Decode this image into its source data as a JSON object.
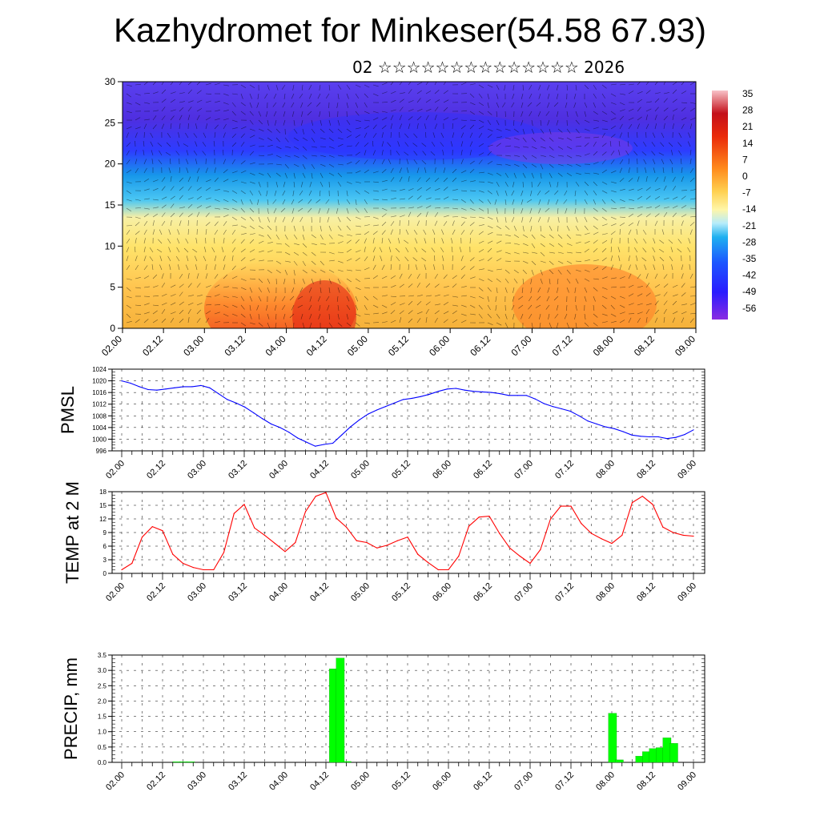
{
  "title": "Kazhydromet for Minkeser(54.58 67.93)",
  "subtitle": "02 ☆☆☆☆☆☆☆☆☆☆☆☆☆☆ 2026",
  "x_labels": [
    "02.00",
    "02.12",
    "03.00",
    "03.12",
    "04.00",
    "04.12",
    "05.00",
    "05.12",
    "06.00",
    "06.12",
    "07.00",
    "07.12",
    "08.00",
    "08.12",
    "09.00"
  ],
  "chart_data": [
    {
      "type": "heatmap",
      "ylim": [
        0,
        30
      ],
      "yticks": [
        0,
        5,
        10,
        15,
        20,
        25,
        30
      ],
      "colorbar": {
        "labels": [
          "35",
          "28",
          "21",
          "14",
          "7",
          "0",
          "-7",
          "-14",
          "-21",
          "-28",
          "-35",
          "-42",
          "-49",
          "-56"
        ],
        "range": [
          -63,
          38
        ]
      },
      "colors": {
        "cold": "#7b26d9",
        "blue": "#2a40ff",
        "cyan": "#27c3f2",
        "yellow": "#ffe16a",
        "orange": "#ffa53b",
        "red": "#e41e12"
      }
    },
    {
      "type": "line",
      "ylabel": "PMSL",
      "ylim": [
        996,
        1024
      ],
      "yticks": [
        "996",
        "1000",
        "1004",
        "1008",
        "1012",
        "1016",
        "1020",
        "1024"
      ],
      "color": "#0000ff",
      "values": [
        1020,
        1019.2,
        1018,
        1017,
        1016.8,
        1017.2,
        1017.6,
        1018,
        1018,
        1018.4,
        1017.6,
        1015.6,
        1013.6,
        1012.4,
        1011,
        1009,
        1007,
        1005.2,
        1004,
        1002.4,
        1000.4,
        999,
        997.6,
        998.2,
        998.6,
        1001.4,
        1004.2,
        1006.6,
        1008.6,
        1010,
        1011.2,
        1012.4,
        1013.6,
        1014,
        1014.6,
        1015.4,
        1016.4,
        1017.2,
        1017.4,
        1016.8,
        1016.4,
        1016.2,
        1016,
        1015.6,
        1015,
        1015,
        1015,
        1013.8,
        1012.2,
        1011.2,
        1010.4,
        1009.6,
        1008,
        1006.2,
        1005.2,
        1004.2,
        1003.6,
        1002.6,
        1001.4,
        1001,
        1000.8,
        1000.8,
        1000.2,
        1000.6,
        1001.6,
        1003.2
      ]
    },
    {
      "type": "line",
      "ylabel": "TEMP at 2 M",
      "ylim": [
        0,
        18
      ],
      "yticks": [
        "0",
        "3",
        "6",
        "9",
        "12",
        "15",
        "18"
      ],
      "color": "#ff0000",
      "values": [
        0.8,
        2.2,
        8,
        10.3,
        9.4,
        4.2,
        2.2,
        1.3,
        0.8,
        0.8,
        4.6,
        13.2,
        15.2,
        10,
        8.4,
        6.6,
        4.8,
        6.8,
        13.6,
        17,
        17.8,
        12.2,
        10.2,
        7.2,
        6.8,
        5.6,
        6.2,
        7.2,
        8,
        4.2,
        2.4,
        0.8,
        0.8,
        3.8,
        10.4,
        12.4,
        12.6,
        8.8,
        5.6,
        3.8,
        2.2,
        5.2,
        12,
        14.8,
        14.8,
        11,
        8.8,
        7.6,
        6.6,
        8.4,
        15.6,
        17,
        15.2,
        10.2,
        9,
        8.4,
        8.2
      ]
    },
    {
      "type": "bar",
      "ylabel": "PRECIP, mm",
      "ylim": [
        0,
        3.5
      ],
      "yticks": [
        "0.0",
        "0.5",
        "1.0",
        "1.5",
        "2.0",
        "2.5",
        "3.0",
        "3.5"
      ],
      "color": "#00ff00",
      "bars": [
        {
          "x": 8.0,
          "value": 0.02
        },
        {
          "x": 9.0,
          "value": 0.02
        },
        {
          "x": 10.0,
          "value": 0.02
        },
        {
          "x": 31.0,
          "value": 3.05
        },
        {
          "x": 32.0,
          "value": 3.4
        },
        {
          "x": 33.0,
          "value": 0.03
        },
        {
          "x": 72.0,
          "value": 1.6
        },
        {
          "x": 73.0,
          "value": 0.08
        },
        {
          "x": 76.0,
          "value": 0.2
        },
        {
          "x": 77.0,
          "value": 0.35
        },
        {
          "x": 78.0,
          "value": 0.45
        },
        {
          "x": 79.0,
          "value": 0.48
        },
        {
          "x": 80.0,
          "value": 0.8
        },
        {
          "x": 81.0,
          "value": 0.62
        }
      ]
    }
  ]
}
